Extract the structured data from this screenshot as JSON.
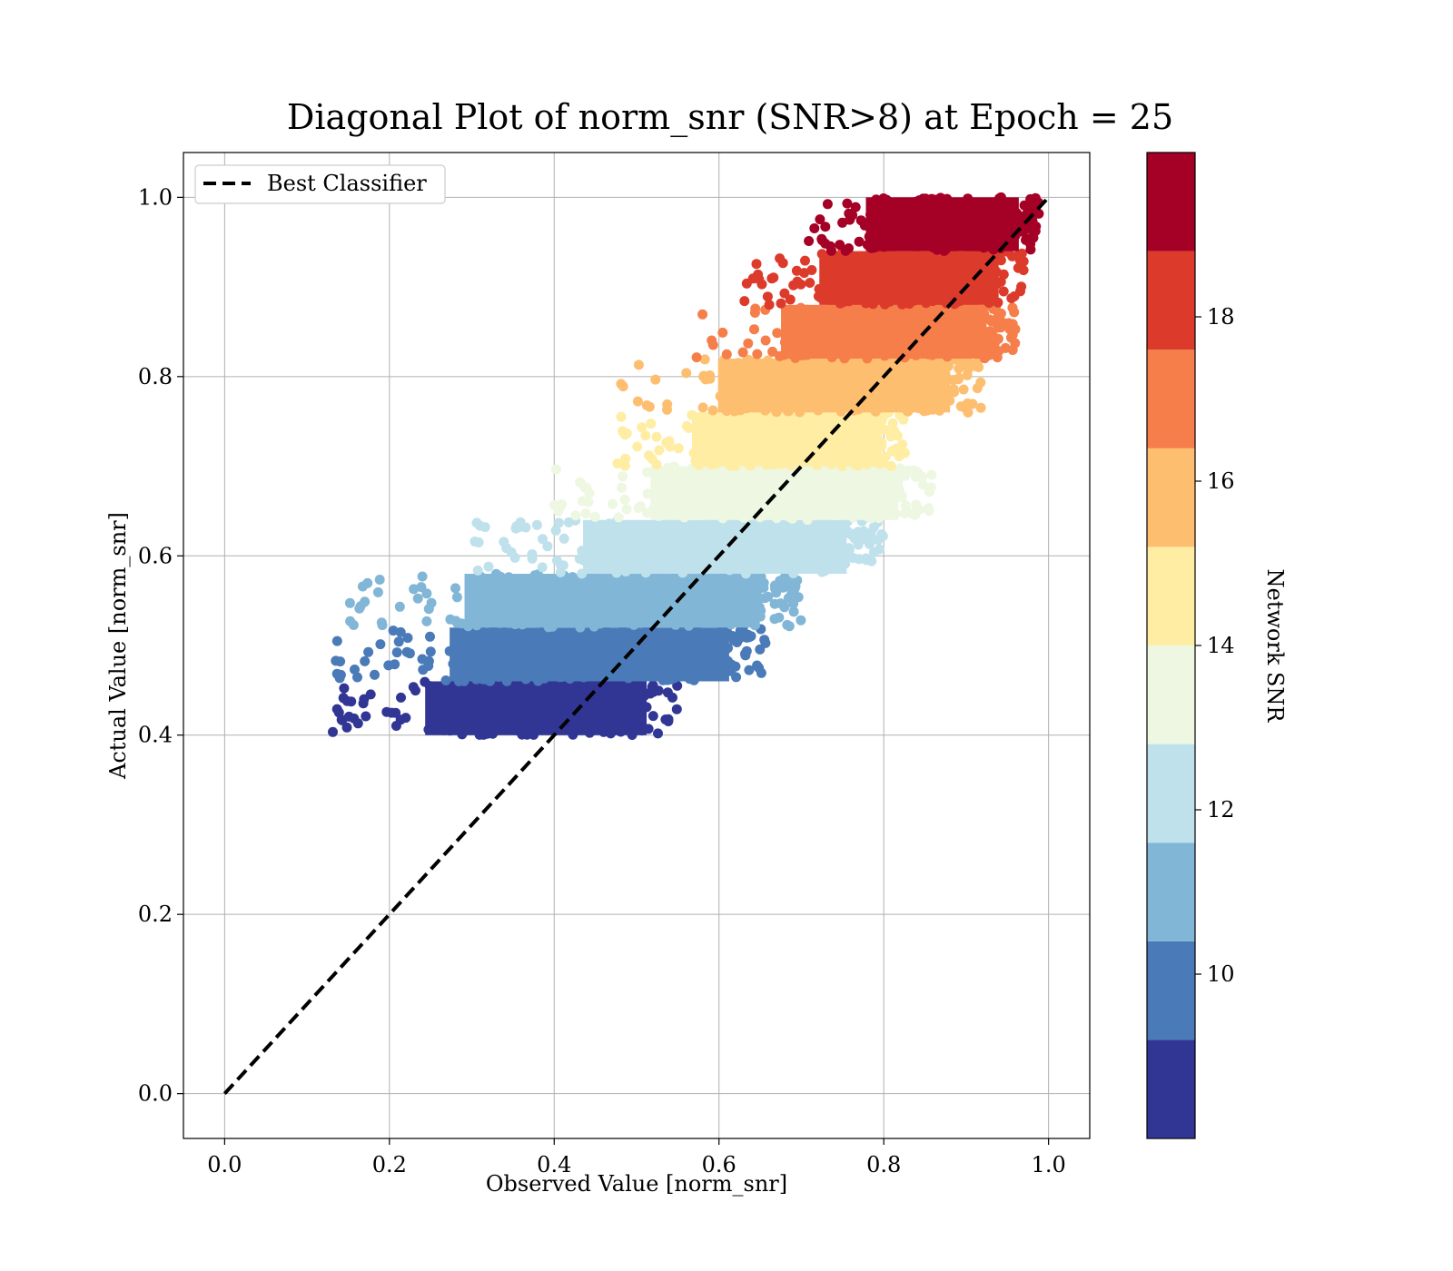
{
  "chart_data": {
    "type": "scatter",
    "title": "Diagonal Plot of norm_snr (SNR>8) at Epoch = 25",
    "xlabel": "Observed Value [norm_snr]",
    "ylabel": "Actual Value [norm_snr]",
    "xlim": [
      -0.05,
      1.05
    ],
    "ylim": [
      -0.05,
      1.05
    ],
    "grid": true,
    "legend": {
      "placement": "top-left",
      "entries": [
        "Best Classifier"
      ]
    },
    "x_ticks": [
      0.0,
      0.2,
      0.4,
      0.6,
      0.8,
      1.0
    ],
    "y_ticks": [
      0.0,
      0.2,
      0.4,
      0.6,
      0.8,
      1.0
    ],
    "x_tick_labels": [
      "0.0",
      "0.2",
      "0.4",
      "0.6",
      "0.8",
      "1.0"
    ],
    "y_tick_labels": [
      "0.0",
      "0.2",
      "0.4",
      "0.6",
      "0.8",
      "1.0"
    ],
    "reference_line": {
      "name": "Best Classifier",
      "x": [
        0.0,
        1.0
      ],
      "y": [
        0.0,
        1.0
      ],
      "style": "dashed",
      "color": "#000000"
    },
    "colorbar": {
      "label": "Network SNR",
      "range": [
        8,
        20
      ],
      "ticks": [
        10,
        12,
        14,
        16,
        18
      ],
      "tick_labels": [
        "10",
        "12",
        "14",
        "16",
        "18"
      ],
      "bands": [
        {
          "from": 8,
          "to": 9.2,
          "color": "#313695"
        },
        {
          "from": 9.2,
          "to": 10.4,
          "color": "#4a7ab7"
        },
        {
          "from": 10.4,
          "to": 11.6,
          "color": "#81b6d6"
        },
        {
          "from": 11.6,
          "to": 12.8,
          "color": "#bfe1ec"
        },
        {
          "from": 12.8,
          "to": 14.0,
          "color": "#eef7e1"
        },
        {
          "from": 14.0,
          "to": 15.2,
          "color": "#feeda3"
        },
        {
          "from": 15.2,
          "to": 16.4,
          "color": "#fdbe70"
        },
        {
          "from": 16.4,
          "to": 17.6,
          "color": "#f57e4a"
        },
        {
          "from": 17.6,
          "to": 18.8,
          "color": "#dc3b2c"
        },
        {
          "from": 18.8,
          "to": 20,
          "color": "#a50026"
        }
      ]
    },
    "series": [
      {
        "y_range": [
          0.4,
          0.46
        ],
        "x_range": [
          0.13,
          0.55
        ],
        "color": "#313695"
      },
      {
        "y_range": [
          0.46,
          0.52
        ],
        "x_range": [
          0.13,
          0.66
        ],
        "color": "#4a7ab7"
      },
      {
        "y_range": [
          0.52,
          0.58
        ],
        "x_range": [
          0.14,
          0.7
        ],
        "color": "#81b6d6"
      },
      {
        "y_range": [
          0.58,
          0.64
        ],
        "x_range": [
          0.3,
          0.8
        ],
        "color": "#bfe1ec"
      },
      {
        "y_range": [
          0.64,
          0.7
        ],
        "x_range": [
          0.39,
          0.86
        ],
        "color": "#eef7e1"
      },
      {
        "y_range": [
          0.7,
          0.76
        ],
        "x_range": [
          0.47,
          0.83
        ],
        "color": "#feeda3"
      },
      {
        "y_range": [
          0.76,
          0.82
        ],
        "x_range": [
          0.48,
          0.92
        ],
        "color": "#fdbe70"
      },
      {
        "y_range": [
          0.82,
          0.88
        ],
        "x_range": [
          0.57,
          0.96
        ],
        "color": "#f57e4a"
      },
      {
        "y_range": [
          0.88,
          0.94
        ],
        "x_range": [
          0.63,
          0.97
        ],
        "color": "#dc3b2c"
      },
      {
        "y_range": [
          0.94,
          1.0
        ],
        "x_range": [
          0.7,
          0.99
        ],
        "color": "#a50026"
      }
    ]
  }
}
